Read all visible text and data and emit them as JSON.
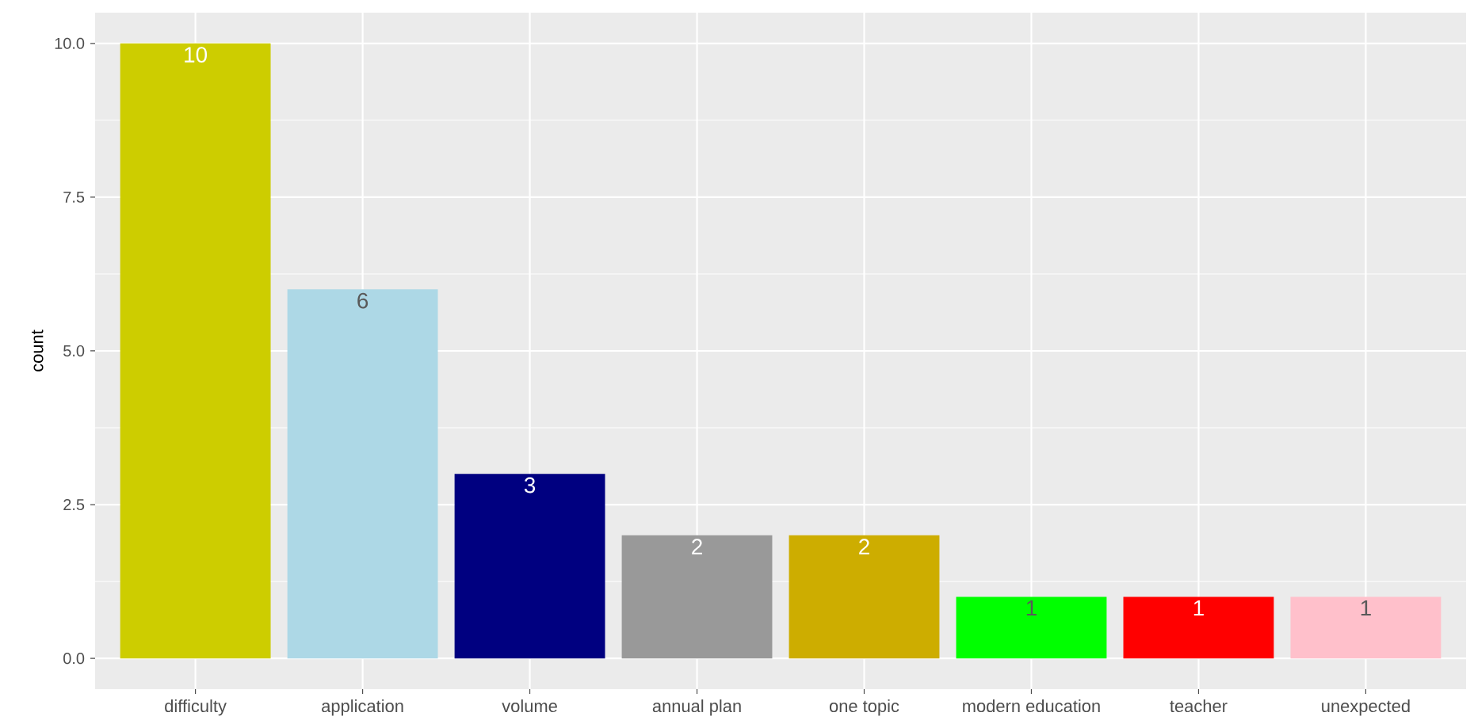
{
  "chart_data": {
    "type": "bar",
    "ylabel": "count",
    "categories": [
      "difficulty",
      "application",
      "volume",
      "annual plan",
      "one topic",
      "modern education",
      "teacher",
      "unexpected"
    ],
    "values": [
      10,
      6,
      3,
      2,
      2,
      1,
      1,
      1
    ],
    "colors": [
      "#cdcd00",
      "#add8e6",
      "#000080",
      "#999999",
      "#cdad00",
      "#00ff00",
      "#ff0000",
      "#ffc0cb"
    ],
    "ylim": [
      -0.5,
      10.5
    ],
    "yticks": [
      {
        "value": 0,
        "label": "0.0"
      },
      {
        "value": 2.5,
        "label": "2.5"
      },
      {
        "value": 5,
        "label": "5.0"
      },
      {
        "value": 7.5,
        "label": "7.5"
      },
      {
        "value": 10,
        "label": "10.0"
      }
    ],
    "grid": true,
    "data_labels": true
  }
}
